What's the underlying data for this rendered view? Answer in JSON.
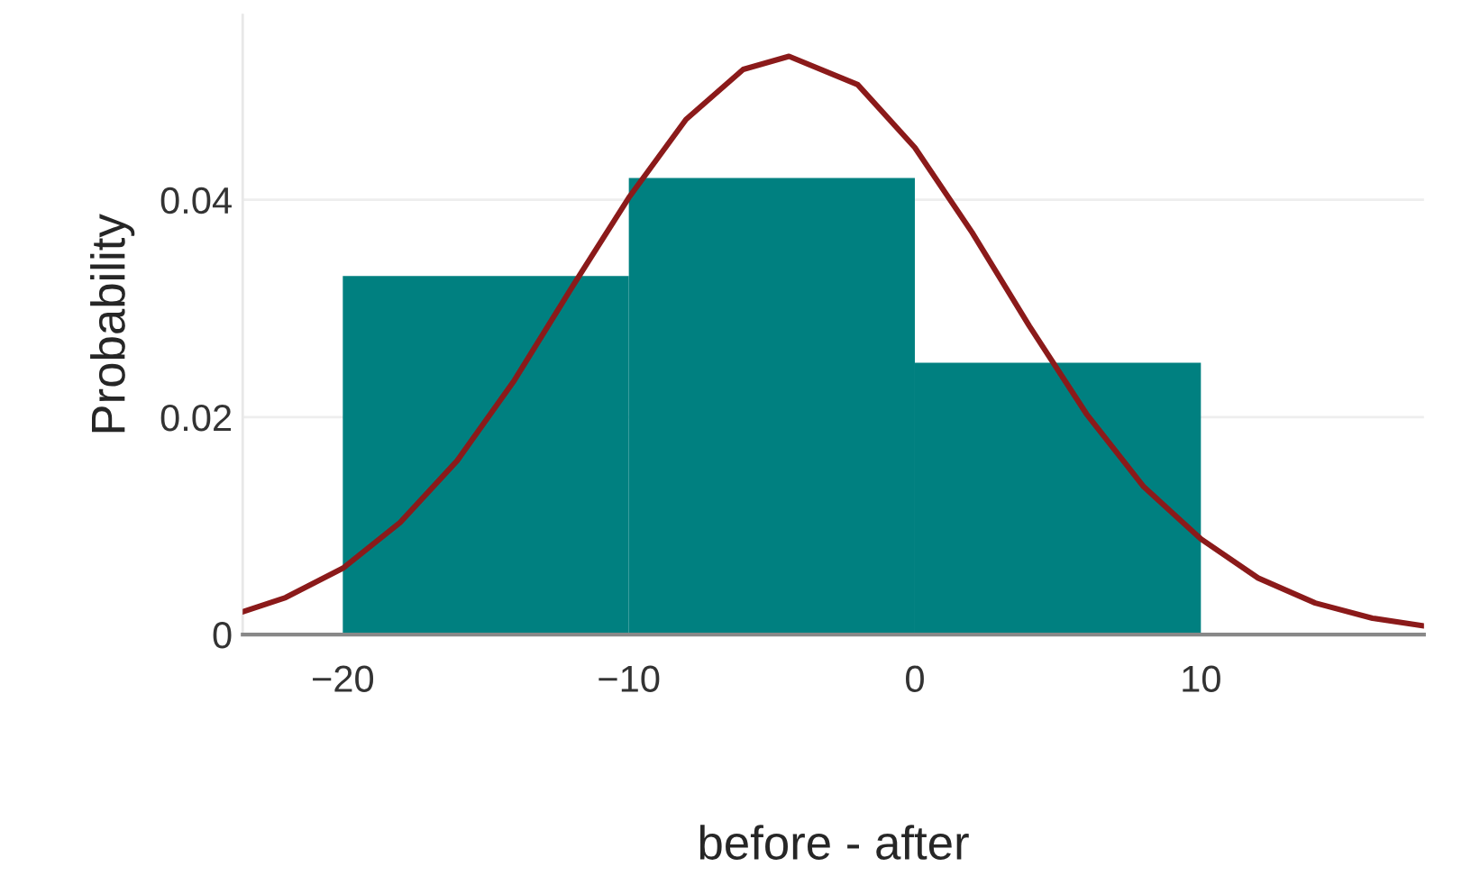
{
  "chart_data": {
    "type": "histogram",
    "xlabel": "before - after",
    "ylabel": "Probability",
    "bins": [
      -20,
      -10,
      0,
      10
    ],
    "values": [
      0.033,
      0.042,
      0.025
    ],
    "color": "#008080",
    "series": [
      {
        "type": "line",
        "color": "#8b1a1a",
        "x": [
          -23.5,
          -22,
          -20,
          -18,
          -16,
          -14,
          -12,
          -10,
          -8,
          -6,
          -4.4,
          -2,
          0,
          2,
          4,
          6,
          8,
          10,
          12,
          14,
          16,
          17.8
        ],
        "values": [
          0.0021,
          0.0034,
          0.0061,
          0.0103,
          0.016,
          0.0234,
          0.0319,
          0.0402,
          0.0474,
          0.052,
          0.0532,
          0.0506,
          0.0448,
          0.037,
          0.0284,
          0.0203,
          0.0136,
          0.0088,
          0.0052,
          0.0029,
          0.0015,
          0.0008
        ]
      }
    ],
    "xlim": [
      -23.5,
      17.8
    ],
    "ylim": [
      0,
      0.057
    ],
    "xticks": [
      {
        "value": -20,
        "label": "−20"
      },
      {
        "value": -10,
        "label": "−10"
      },
      0,
      10
    ],
    "yticks": [
      0,
      0.02,
      0.04
    ],
    "grid": "y"
  }
}
